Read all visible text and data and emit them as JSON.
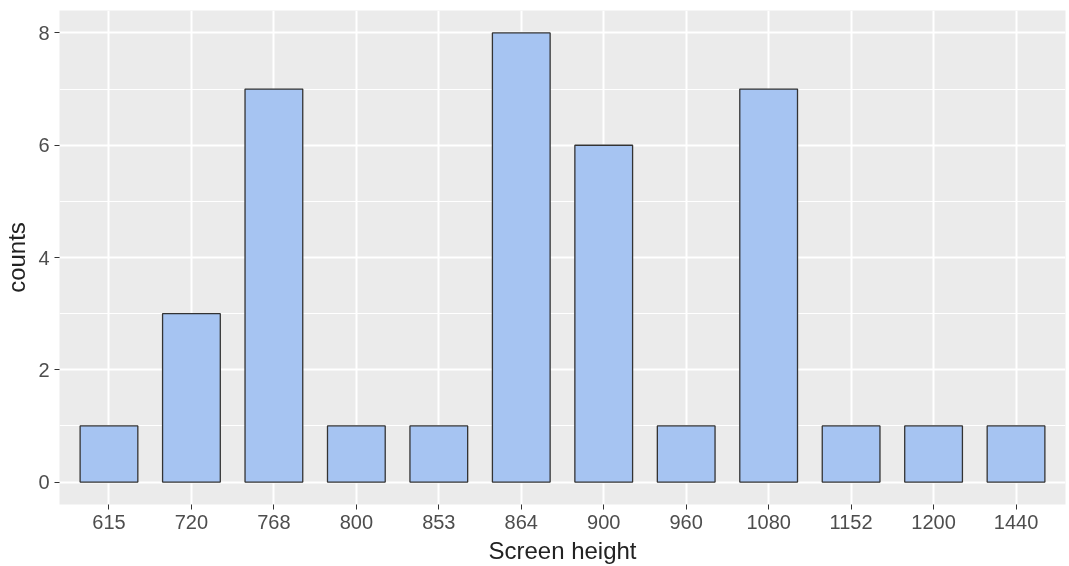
{
  "chart_data": {
    "type": "bar",
    "xlabel": "Screen height",
    "ylabel": "counts",
    "categories": [
      "615",
      "720",
      "768",
      "800",
      "853",
      "864",
      "900",
      "960",
      "1080",
      "1152",
      "1200",
      "1440"
    ],
    "series": [
      {
        "color": "#a6c4f2",
        "values": [
          1,
          3,
          7,
          1,
          1,
          8,
          6,
          1,
          7,
          1,
          1,
          1
        ]
      }
    ],
    "ylim": [
      -0.4,
      8.4
    ],
    "yticks": [
      0,
      2,
      4,
      6,
      8
    ],
    "grid": true
  }
}
